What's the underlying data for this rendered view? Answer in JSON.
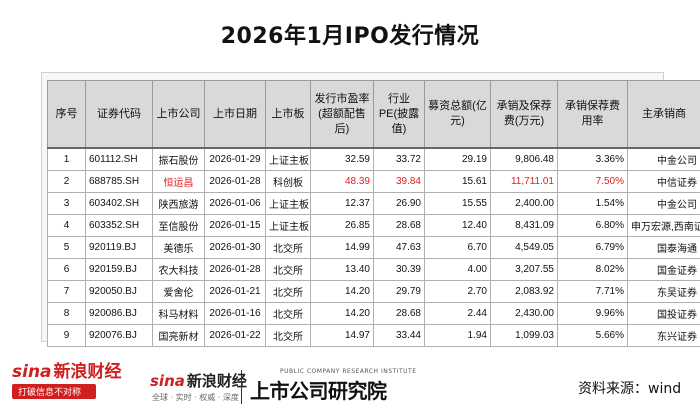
{
  "title": "2026年1月IPO发行情况",
  "headers": [
    "序号",
    "证券代码",
    "上市公司",
    "上市日期",
    "上市板",
    "发行市盈率(超额配售后)",
    "行业PE(披露值)",
    "募资总额(亿元)",
    "承销及保荐费(万元)",
    "承销保荐费用率",
    "主承销商"
  ],
  "rows": [
    [
      "1",
      "601112.SH",
      "振石股份",
      "2026-01-29",
      "上证主板",
      "32.59",
      "33.72",
      "29.19",
      "9,806.48",
      "3.36%",
      "中金公司"
    ],
    [
      "2",
      "688785.SH",
      "恒运昌",
      "2026-01-28",
      "科创板",
      "48.39",
      "39.84",
      "15.61",
      "11,711.01",
      "7.50%",
      "中信证券"
    ],
    [
      "3",
      "603402.SH",
      "陕西旅游",
      "2026-01-06",
      "上证主板",
      "12.37",
      "26.90",
      "15.55",
      "2,400.00",
      "1.54%",
      "中金公司"
    ],
    [
      "4",
      "603352.SH",
      "至信股份",
      "2026-01-15",
      "上证主板",
      "26.85",
      "28.68",
      "12.40",
      "8,431.09",
      "6.80%",
      "申万宏源,西南证券"
    ],
    [
      "5",
      "920119.BJ",
      "美德乐",
      "2026-01-30",
      "北交所",
      "14.99",
      "47.63",
      "6.70",
      "4,549.05",
      "6.79%",
      "国泰海通"
    ],
    [
      "6",
      "920159.BJ",
      "农大科技",
      "2026-01-28",
      "北交所",
      "13.40",
      "30.39",
      "4.00",
      "3,207.55",
      "8.02%",
      "国金证券"
    ],
    [
      "7",
      "920050.BJ",
      "爱舍伦",
      "2026-01-21",
      "北交所",
      "14.20",
      "29.79",
      "2.70",
      "2,083.92",
      "7.71%",
      "东吴证券"
    ],
    [
      "8",
      "920086.BJ",
      "科马材料",
      "2026-01-16",
      "北交所",
      "14.20",
      "28.68",
      "2.44",
      "2,430.00",
      "9.96%",
      "国投证券"
    ],
    [
      "9",
      "920076.BJ",
      "国亮新材",
      "2026-01-22",
      "北交所",
      "14.97",
      "33.44",
      "1.94",
      "1,099.03",
      "5.66%",
      "东兴证券"
    ]
  ],
  "highlight_color": "#e02020",
  "footer": {
    "logo1_brand": "sina",
    "logo1_cn": "新浪财经",
    "logo1_slogan": "打破信息不对称",
    "logo2_brand": "sina",
    "logo2_cn": "新浪财经",
    "logo2_slogan": "全球 · 实时 · 权威 · 深度",
    "logo3_tagline": "PUBLIC COMPANY RESEARCH INSTITUTE",
    "logo3_name": "上市公司研究院",
    "source": "资料来源：wind"
  }
}
